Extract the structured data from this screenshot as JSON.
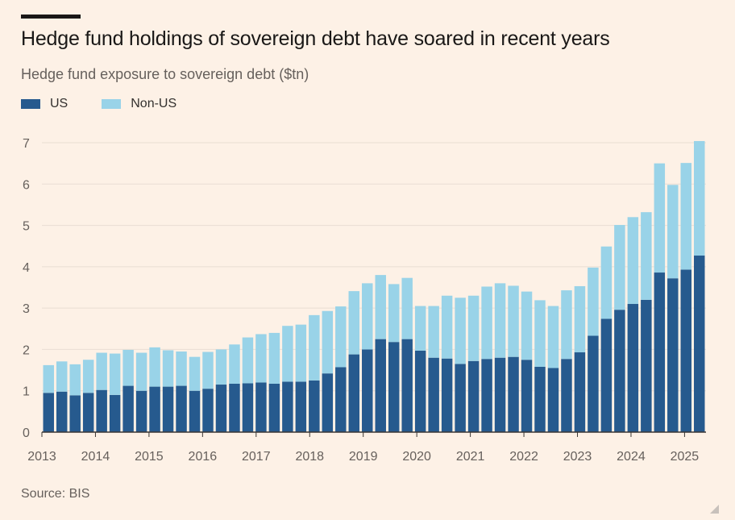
{
  "chart_data": {
    "type": "bar",
    "stacked": true,
    "title": "Hedge fund holdings of sovereign debt have soared in recent years",
    "subtitle": "Hedge fund exposure to sovereign debt ($tn)",
    "source": "Source: BIS",
    "ylim": [
      0,
      7
    ],
    "yticks": [
      "0",
      "1",
      "2",
      "3",
      "4",
      "5",
      "6",
      "7"
    ],
    "xlim": [
      2013,
      2025.4
    ],
    "xticks": [
      "2013",
      "2014",
      "2015",
      "2016",
      "2017",
      "2018",
      "2019",
      "2020",
      "2021",
      "2022",
      "2023",
      "2024",
      "2025"
    ],
    "colors": {
      "US": "#265a8e",
      "Non-US": "#99d3e8",
      "grid": "#e9ded3",
      "axis": "#3a3633"
    },
    "series": [
      {
        "name": "US",
        "values": [
          0.95,
          0.98,
          0.89,
          0.95,
          1.02,
          0.9,
          1.12,
          1.0,
          1.1,
          1.1,
          1.12,
          1.0,
          1.05,
          1.15,
          1.17,
          1.18,
          1.2,
          1.17,
          1.22,
          1.22,
          1.25,
          1.42,
          1.57,
          1.88,
          2.0,
          2.25,
          2.18,
          2.25,
          1.97,
          1.8,
          1.78,
          1.65,
          1.72,
          1.77,
          1.8,
          1.82,
          1.75,
          1.58,
          1.55,
          1.77,
          1.93,
          2.33,
          2.74,
          2.96,
          3.1,
          3.2,
          3.86,
          3.72,
          3.93,
          4.27
        ]
      },
      {
        "name": "Non-US",
        "values": [
          0.67,
          0.73,
          0.75,
          0.8,
          0.9,
          1.0,
          0.87,
          0.92,
          0.95,
          0.88,
          0.83,
          0.82,
          0.89,
          0.85,
          0.95,
          1.11,
          1.17,
          1.23,
          1.35,
          1.38,
          1.58,
          1.51,
          1.47,
          1.53,
          1.6,
          1.55,
          1.4,
          1.48,
          1.08,
          1.25,
          1.52,
          1.6,
          1.58,
          1.75,
          1.8,
          1.72,
          1.65,
          1.61,
          1.5,
          1.66,
          1.6,
          1.65,
          1.75,
          2.05,
          2.1,
          2.12,
          2.64,
          2.26,
          2.58,
          2.77
        ]
      }
    ],
    "legend": [
      {
        "name": "US",
        "label": "US"
      },
      {
        "name": "Non-US",
        "label": "Non-US"
      }
    ]
  }
}
